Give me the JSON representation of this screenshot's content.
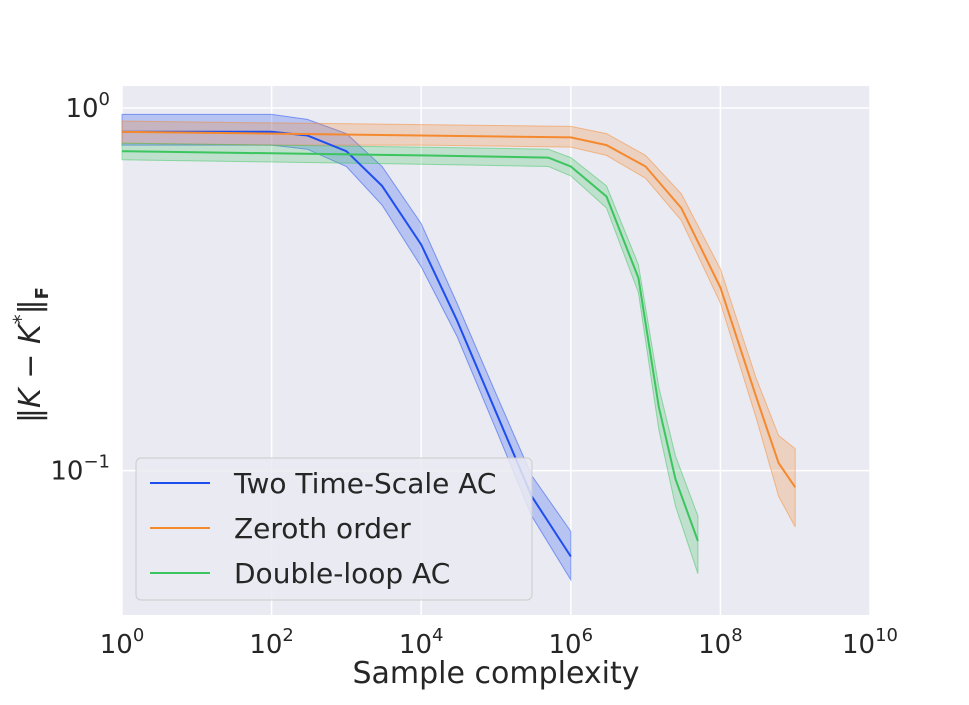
{
  "chart_data": {
    "type": "line",
    "title": "",
    "xlabel": "Sample complexity",
    "ylabel": "‖K − K*‖F",
    "xscale": "log",
    "yscale": "log",
    "xlim": [
      1,
      10000000000
    ],
    "ylim": [
      0.04,
      1.15
    ],
    "x_ticks": [
      {
        "value": 1,
        "base": "10",
        "exp": "0"
      },
      {
        "value": 100,
        "base": "10",
        "exp": "2"
      },
      {
        "value": 10000,
        "base": "10",
        "exp": "4"
      },
      {
        "value": 1000000,
        "base": "10",
        "exp": "6"
      },
      {
        "value": 100000000,
        "base": "10",
        "exp": "8"
      },
      {
        "value": 10000000000,
        "base": "10",
        "exp": "10"
      }
    ],
    "y_ticks": [
      {
        "value": 1,
        "base": "10",
        "exp": "0"
      },
      {
        "value": 0.1,
        "base": "10",
        "exp": "−1"
      }
    ],
    "grid": true,
    "legend_position": "lower-left",
    "background": "#eaeaf2",
    "series": [
      {
        "name": "Two Time-Scale AC",
        "color": "#1f4ef0",
        "x": [
          1,
          10,
          100,
          300,
          1000,
          3000,
          10000,
          30000,
          100000,
          300000,
          1000000
        ],
        "y": [
          0.86,
          0.86,
          0.86,
          0.84,
          0.76,
          0.61,
          0.42,
          0.26,
          0.145,
          0.085,
          0.058
        ],
        "lower": [
          0.79,
          0.79,
          0.79,
          0.77,
          0.69,
          0.54,
          0.365,
          0.235,
          0.13,
          0.075,
          0.05
        ],
        "upper": [
          0.96,
          0.96,
          0.96,
          0.93,
          0.85,
          0.69,
          0.48,
          0.29,
          0.163,
          0.097,
          0.068
        ]
      },
      {
        "name": "Zeroth order",
        "color": "#f5892e",
        "x": [
          1,
          100,
          10000,
          1000000,
          3000000,
          10000000,
          30000000,
          100000000,
          300000000,
          600000000,
          1000000000
        ],
        "y": [
          0.86,
          0.85,
          0.84,
          0.83,
          0.79,
          0.69,
          0.53,
          0.32,
          0.16,
          0.105,
          0.09
        ],
        "lower": [
          0.8,
          0.79,
          0.79,
          0.78,
          0.74,
          0.64,
          0.49,
          0.29,
          0.14,
          0.085,
          0.07
        ],
        "upper": [
          0.92,
          0.91,
          0.9,
          0.89,
          0.85,
          0.74,
          0.58,
          0.36,
          0.18,
          0.125,
          0.115
        ]
      },
      {
        "name": "Double-loop AC",
        "color": "#3cc55e",
        "x": [
          1,
          100,
          10000,
          500000,
          1000000,
          3000000,
          8000000,
          15000000,
          25000000,
          50000000
        ],
        "y": [
          0.76,
          0.75,
          0.74,
          0.73,
          0.69,
          0.57,
          0.34,
          0.15,
          0.095,
          0.064
        ],
        "lower": [
          0.72,
          0.71,
          0.7,
          0.69,
          0.65,
          0.53,
          0.31,
          0.13,
          0.08,
          0.052
        ],
        "upper": [
          0.8,
          0.79,
          0.78,
          0.77,
          0.73,
          0.61,
          0.37,
          0.17,
          0.11,
          0.075
        ]
      }
    ]
  }
}
